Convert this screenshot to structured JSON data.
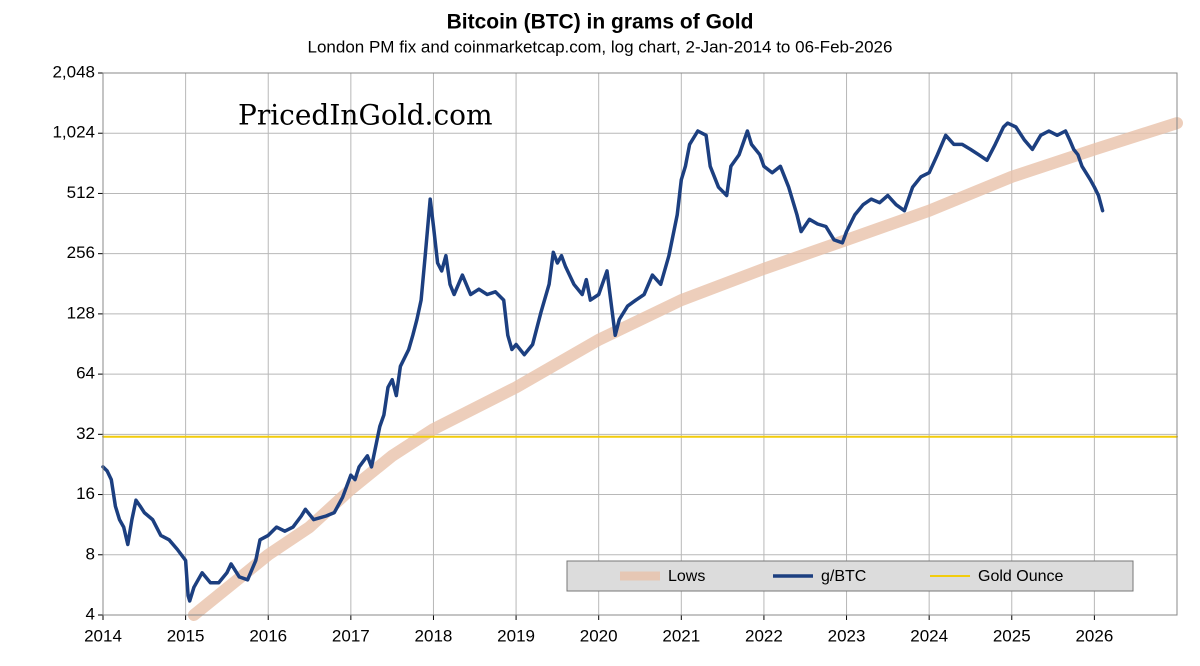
{
  "chart_data": {
    "type": "line",
    "title": "Bitcoin (BTC) in grams of Gold",
    "subtitle": "London PM fix and coinmarketcap.com, log chart, 2-Jan-2014 to 06-Feb-2026",
    "annotation": "PricedInGold.com",
    "log_scale": true,
    "grid": true,
    "legend": "bottom-right",
    "xlim": [
      2014,
      2027
    ],
    "xticks": [
      2014,
      2015,
      2016,
      2017,
      2018,
      2019,
      2020,
      2021,
      2022,
      2023,
      2024,
      2025,
      2026
    ],
    "ylim": [
      4,
      2048
    ],
    "yticks": [
      4,
      8,
      16,
      32,
      64,
      128,
      256,
      512,
      {
        "value": 1024,
        "label": "1,024"
      },
      {
        "value": 2048,
        "label": "2,048"
      }
    ],
    "series": [
      {
        "name": "Lows",
        "color": "#e9c2aa",
        "x": [
          2015.1,
          2016,
          2016.5,
          2017,
          2017.5,
          2018,
          2019,
          2020,
          2021,
          2022,
          2023,
          2024,
          2025,
          2026,
          2027
        ],
        "values": [
          4,
          8,
          11,
          17,
          25,
          34,
          55,
          95,
          150,
          215,
          300,
          420,
          620,
          850,
          1150
        ]
      },
      {
        "name": "g/BTC",
        "color": "#1c3f80",
        "x": [
          2014.0,
          2014.05,
          2014.1,
          2014.15,
          2014.2,
          2014.25,
          2014.3,
          2014.35,
          2014.4,
          2014.45,
          2014.5,
          2014.6,
          2014.7,
          2014.8,
          2014.9,
          2015.0,
          2015.03,
          2015.05,
          2015.1,
          2015.2,
          2015.3,
          2015.4,
          2015.5,
          2015.55,
          2015.65,
          2015.75,
          2015.85,
          2015.9,
          2016.0,
          2016.1,
          2016.2,
          2016.3,
          2016.4,
          2016.45,
          2016.55,
          2016.7,
          2016.8,
          2016.9,
          2017.0,
          2017.05,
          2017.1,
          2017.2,
          2017.25,
          2017.35,
          2017.4,
          2017.45,
          2017.5,
          2017.55,
          2017.6,
          2017.7,
          2017.75,
          2017.8,
          2017.85,
          2017.9,
          2017.96,
          2018.0,
          2018.05,
          2018.1,
          2018.15,
          2018.2,
          2018.25,
          2018.35,
          2018.45,
          2018.55,
          2018.65,
          2018.75,
          2018.85,
          2018.9,
          2018.95,
          2019.0,
          2019.1,
          2019.2,
          2019.3,
          2019.4,
          2019.45,
          2019.5,
          2019.55,
          2019.6,
          2019.7,
          2019.8,
          2019.85,
          2019.9,
          2020.0,
          2020.1,
          2020.2,
          2020.25,
          2020.35,
          2020.45,
          2020.55,
          2020.65,
          2020.75,
          2020.85,
          2020.95,
          2021.0,
          2021.05,
          2021.1,
          2021.2,
          2021.3,
          2021.35,
          2021.45,
          2021.55,
          2021.6,
          2021.7,
          2021.8,
          2021.85,
          2021.95,
          2022.0,
          2022.1,
          2022.2,
          2022.3,
          2022.4,
          2022.45,
          2022.55,
          2022.65,
          2022.75,
          2022.85,
          2022.95,
          2023.0,
          2023.1,
          2023.2,
          2023.3,
          2023.4,
          2023.5,
          2023.6,
          2023.7,
          2023.8,
          2023.9,
          2024.0,
          2024.1,
          2024.2,
          2024.3,
          2024.4,
          2024.5,
          2024.6,
          2024.7,
          2024.8,
          2024.9,
          2024.95,
          2025.05,
          2025.15,
          2025.25,
          2025.35,
          2025.45,
          2025.55,
          2025.65,
          2025.7,
          2025.75,
          2025.8,
          2025.85,
          2025.95,
          2026.0,
          2026.05,
          2026.1
        ],
        "values": [
          22,
          21,
          19,
          14,
          12,
          11,
          9,
          12,
          15,
          14,
          13,
          12,
          10,
          9.5,
          8.5,
          7.5,
          5,
          4.7,
          5.5,
          6.5,
          5.8,
          5.8,
          6.5,
          7.2,
          6.2,
          6.0,
          7.5,
          9.5,
          10,
          11,
          10.5,
          11,
          12.5,
          13.5,
          12,
          12.5,
          13,
          15.5,
          20,
          19,
          22,
          25,
          22,
          35,
          40,
          55,
          60,
          50,
          70,
          85,
          100,
          120,
          150,
          250,
          480,
          350,
          230,
          210,
          250,
          180,
          160,
          200,
          160,
          170,
          160,
          165,
          150,
          100,
          85,
          90,
          80,
          90,
          130,
          180,
          260,
          230,
          250,
          220,
          180,
          160,
          190,
          150,
          160,
          210,
          100,
          120,
          140,
          150,
          160,
          200,
          180,
          250,
          400,
          600,
          700,
          900,
          1050,
          1000,
          700,
          550,
          500,
          700,
          800,
          1050,
          900,
          800,
          700,
          650,
          700,
          550,
          400,
          330,
          380,
          360,
          350,
          300,
          290,
          330,
          400,
          450,
          480,
          460,
          500,
          450,
          420,
          550,
          620,
          650,
          800,
          1000,
          900,
          900,
          850,
          800,
          750,
          900,
          1100,
          1150,
          1100,
          950,
          850,
          1000,
          1050,
          1000,
          1050,
          950,
          850,
          800,
          700,
          600,
          550,
          500,
          420
        ]
      },
      {
        "name": "Gold Ounce",
        "color": "#f2cc0c",
        "x": [
          2014,
          2027
        ],
        "values": [
          31.1,
          31.1
        ]
      }
    ]
  }
}
